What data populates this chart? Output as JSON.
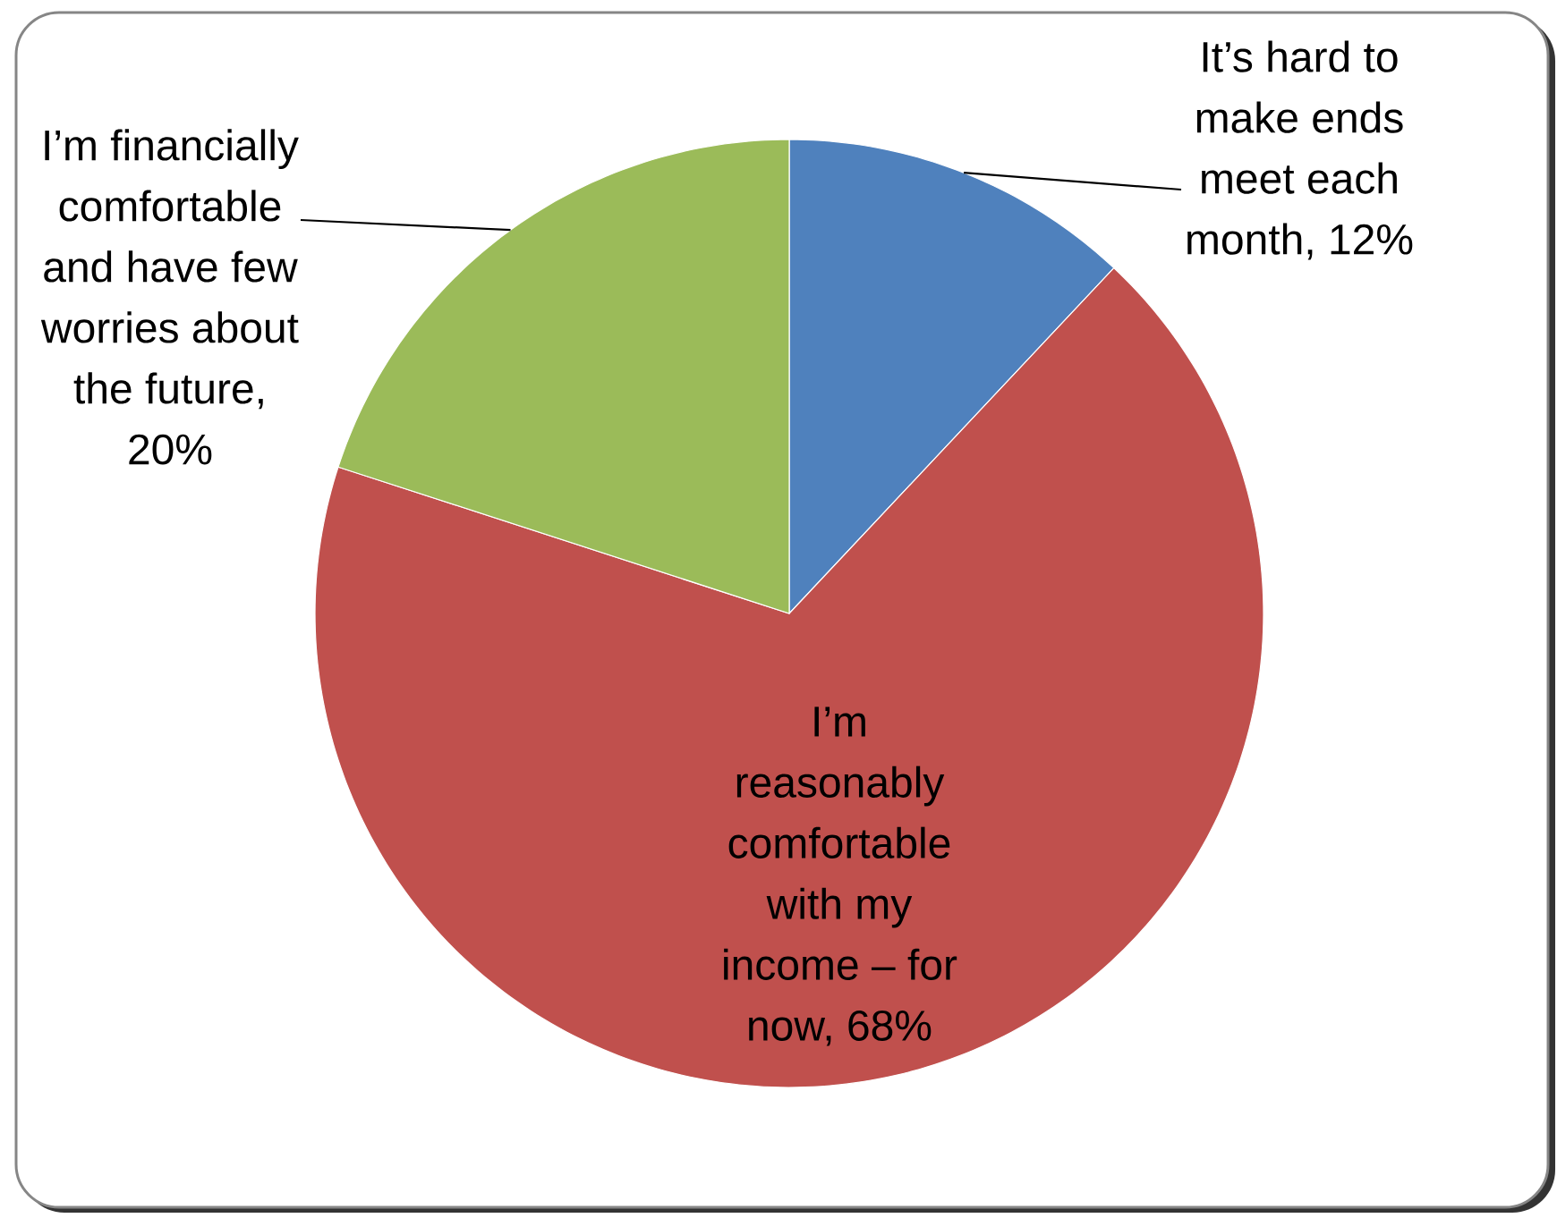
{
  "chart_data": {
    "type": "pie",
    "categories": [
      "It’s hard to make ends meet each month, 12%",
      "I’m reasonably comfortable with my income – for now, 68%",
      "I’m financially comfortable and have few worries about the future, 20%"
    ],
    "values": [
      12,
      68,
      20
    ],
    "colors": [
      "#4f81bd",
      "#c0504d",
      "#9bbb59"
    ]
  }
}
